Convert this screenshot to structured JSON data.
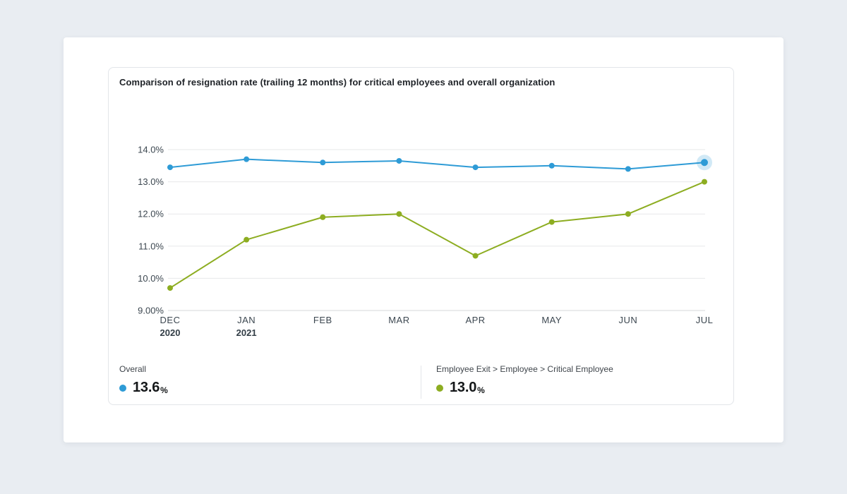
{
  "panel": {
    "title": "Comparison of resignation rate (trailing 12 months) for critical employees and overall organization"
  },
  "chart_data": {
    "type": "line",
    "title": "Comparison of resignation rate (trailing 12 months) for critical employees and overall organization",
    "grid": true,
    "legend_position": "bottom",
    "y_axis": {
      "min": 9.0,
      "max": 14.0,
      "unit": "%",
      "ticks": [
        {
          "label": "14.0%",
          "value": 14.0
        },
        {
          "label": "13.0%",
          "value": 13.0
        },
        {
          "label": "12.0%",
          "value": 12.0
        },
        {
          "label": "11.0%",
          "value": 11.0
        },
        {
          "label": "10.0%",
          "value": 10.0
        },
        {
          "label": "9.00%",
          "value": 9.0
        }
      ]
    },
    "categories": [
      {
        "month": "DEC",
        "year": "2020"
      },
      {
        "month": "JAN",
        "year": "2021"
      },
      {
        "month": "FEB",
        "year": ""
      },
      {
        "month": "MAR",
        "year": ""
      },
      {
        "month": "APR",
        "year": ""
      },
      {
        "month": "MAY",
        "year": ""
      },
      {
        "month": "JUN",
        "year": ""
      },
      {
        "month": "JUL",
        "year": ""
      }
    ],
    "series": [
      {
        "id": "overall",
        "name": "Overall",
        "color": "#2E9BD6",
        "values": [
          13.45,
          13.7,
          13.6,
          13.65,
          13.45,
          13.5,
          13.4,
          13.6
        ],
        "highlight_last": true
      },
      {
        "id": "critical-employee",
        "name": "Employee Exit > Employee > Critical Employee",
        "color": "#8DAD21",
        "values": [
          9.7,
          11.2,
          11.9,
          12.0,
          10.7,
          11.75,
          12.0,
          13.0
        ],
        "highlight_last": false
      }
    ]
  },
  "legend": {
    "items": [
      {
        "label": "Overall",
        "value": "13.6",
        "unit": "%",
        "color": "#2E9BD6"
      },
      {
        "label": "Employee Exit > Employee > Critical Employee",
        "value": "13.0",
        "unit": "%",
        "color": "#8DAD21"
      }
    ]
  }
}
